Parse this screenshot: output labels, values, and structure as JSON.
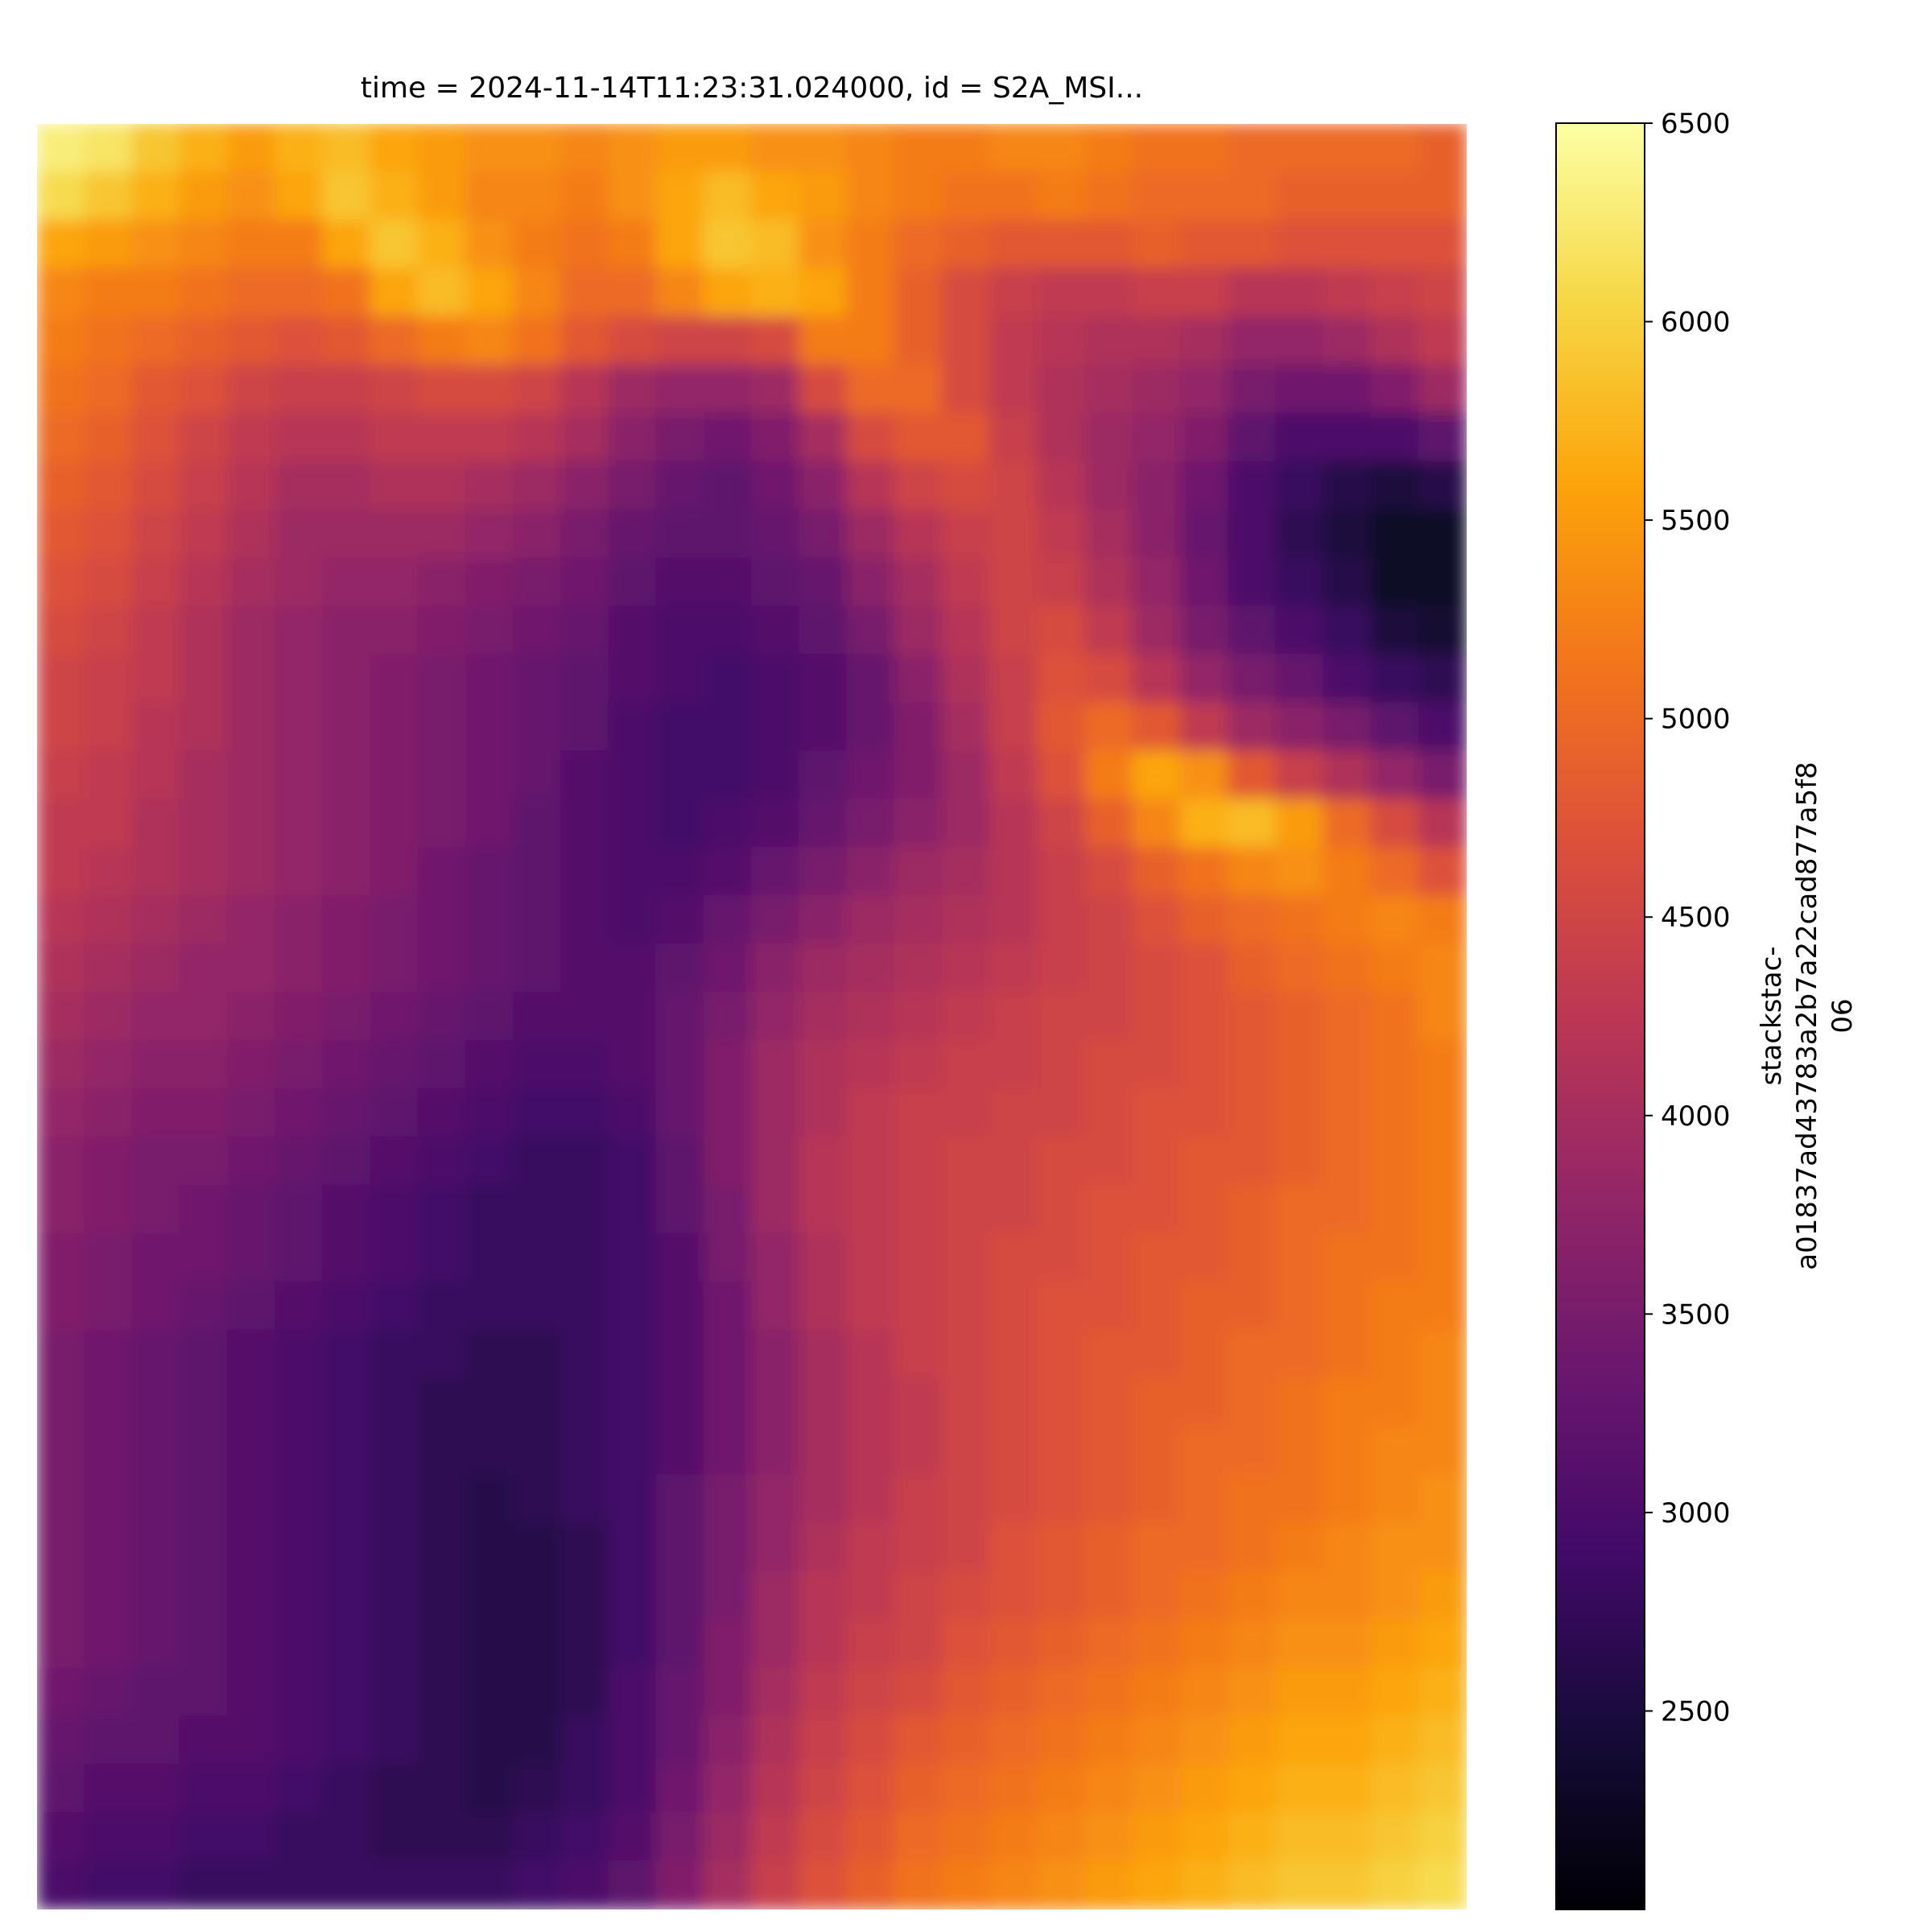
{
  "chart_data": {
    "type": "heatmap",
    "title": "time = 2024-11-14T11:23:31.024000, id = S2A_MSI...",
    "xlabel": "",
    "ylabel": "",
    "axes_visible": false,
    "colormap": "inferno",
    "colorbar": {
      "label_lines": [
        "stackstac-",
        "a01837ad43783a2b7a22cad877a5f8",
        "06"
      ],
      "vmin": 2000,
      "vmax": 6500,
      "ticks": [
        2500,
        3000,
        3500,
        4000,
        4500,
        5000,
        5500,
        6000,
        6500
      ],
      "tick_labels": [
        "2500",
        "3000",
        "3500",
        "4000",
        "4500",
        "5000",
        "5500",
        "6000",
        "6500"
      ],
      "placement": "right"
    },
    "grid_cols": 30,
    "grid_rows": 37,
    "values": [
      [
        6300,
        6200,
        5900,
        5700,
        5500,
        5700,
        5800,
        5600,
        5500,
        5400,
        5400,
        5300,
        5400,
        5500,
        5500,
        5400,
        5400,
        5300,
        5200,
        5200,
        5300,
        5300,
        5200,
        5100,
        5100,
        5000,
        5000,
        5000,
        5000,
        4900
      ],
      [
        6100,
        5900,
        5700,
        5500,
        5400,
        5600,
        5900,
        5700,
        5500,
        5300,
        5300,
        5200,
        5400,
        5600,
        5800,
        5600,
        5500,
        5300,
        5200,
        5100,
        5100,
        5200,
        5100,
        5000,
        5000,
        5000,
        4900,
        4900,
        4900,
        4900
      ],
      [
        5600,
        5500,
        5400,
        5300,
        5200,
        5200,
        5600,
        5900,
        5700,
        5400,
        5200,
        5100,
        5200,
        5600,
        5900,
        5800,
        5400,
        5200,
        5000,
        4900,
        4800,
        4800,
        4800,
        4900,
        4800,
        4800,
        4700,
        4700,
        4700,
        4700
      ],
      [
        5300,
        5200,
        5200,
        5100,
        5000,
        5000,
        5100,
        5600,
        5800,
        5600,
        5300,
        5000,
        5000,
        5300,
        5600,
        5700,
        5600,
        5200,
        4900,
        4600,
        4400,
        4300,
        4300,
        4400,
        4400,
        4200,
        4200,
        4300,
        4400,
        4500
      ],
      [
        5200,
        5100,
        5000,
        4900,
        4800,
        4700,
        4800,
        5000,
        5200,
        5300,
        5100,
        4800,
        4600,
        4500,
        4500,
        4600,
        5200,
        5200,
        4900,
        4600,
        4300,
        4200,
        4100,
        4100,
        4000,
        3800,
        3800,
        3900,
        4100,
        4300
      ],
      [
        5100,
        5000,
        4800,
        4700,
        4500,
        4400,
        4400,
        4500,
        4600,
        4600,
        4500,
        4200,
        3900,
        3800,
        3800,
        3900,
        4600,
        5000,
        5000,
        4600,
        4300,
        4100,
        4000,
        3900,
        3800,
        3500,
        3400,
        3400,
        3600,
        3900
      ],
      [
        5000,
        4900,
        4700,
        4500,
        4300,
        4200,
        4200,
        4300,
        4300,
        4300,
        4200,
        4000,
        3700,
        3500,
        3400,
        3600,
        4000,
        4600,
        4800,
        4800,
        4400,
        4100,
        3900,
        3800,
        3600,
        3200,
        3000,
        3000,
        3000,
        3200
      ],
      [
        4900,
        4800,
        4600,
        4400,
        4200,
        4000,
        4000,
        4100,
        4100,
        4000,
        3900,
        3700,
        3500,
        3300,
        3200,
        3400,
        3700,
        4200,
        4500,
        4600,
        4500,
        4200,
        3900,
        3700,
        3400,
        3000,
        2800,
        2600,
        2500,
        2600
      ],
      [
        4800,
        4700,
        4500,
        4300,
        4100,
        3900,
        3900,
        3900,
        3900,
        3800,
        3700,
        3500,
        3300,
        3200,
        3200,
        3300,
        3500,
        3900,
        4200,
        4400,
        4500,
        4300,
        4000,
        3700,
        3300,
        3000,
        2700,
        2500,
        2300,
        2300
      ],
      [
        4700,
        4600,
        4400,
        4200,
        4000,
        3900,
        3800,
        3800,
        3700,
        3600,
        3500,
        3400,
        3200,
        3100,
        3100,
        3200,
        3300,
        3700,
        4000,
        4300,
        4500,
        4400,
        4100,
        3800,
        3400,
        3000,
        2800,
        2600,
        2300,
        2300
      ],
      [
        4600,
        4500,
        4300,
        4100,
        3900,
        3800,
        3700,
        3700,
        3600,
        3500,
        3400,
        3300,
        3100,
        3000,
        3000,
        3100,
        3200,
        3500,
        3900,
        4200,
        4500,
        4600,
        4300,
        3900,
        3500,
        3200,
        3000,
        2800,
        2500,
        2400
      ],
      [
        4500,
        4400,
        4300,
        4100,
        3900,
        3800,
        3700,
        3600,
        3500,
        3400,
        3300,
        3200,
        3100,
        3000,
        2900,
        3000,
        3100,
        3300,
        3700,
        4100,
        4400,
        4700,
        4600,
        4200,
        3800,
        3500,
        3300,
        3000,
        2800,
        2700
      ],
      [
        4500,
        4400,
        4200,
        4100,
        3900,
        3800,
        3700,
        3600,
        3500,
        3400,
        3300,
        3200,
        3000,
        2900,
        2900,
        3000,
        3100,
        3300,
        3600,
        4000,
        4400,
        4800,
        5000,
        4800,
        4300,
        3900,
        3700,
        3500,
        3200,
        3000
      ],
      [
        4400,
        4300,
        4200,
        4000,
        3900,
        3800,
        3700,
        3600,
        3500,
        3400,
        3300,
        3100,
        3000,
        2900,
        2900,
        3000,
        3200,
        3400,
        3600,
        3900,
        4300,
        4700,
        5200,
        5600,
        5400,
        4800,
        4400,
        4100,
        3800,
        3500
      ],
      [
        4300,
        4300,
        4100,
        4000,
        3900,
        3800,
        3700,
        3600,
        3500,
        3400,
        3200,
        3100,
        3000,
        2900,
        3000,
        3100,
        3300,
        3500,
        3700,
        3900,
        4200,
        4500,
        4900,
        5300,
        5700,
        5800,
        5500,
        5000,
        4600,
        4200
      ],
      [
        4300,
        4200,
        4100,
        4000,
        3900,
        3800,
        3700,
        3600,
        3400,
        3300,
        3200,
        3100,
        3000,
        3000,
        3100,
        3300,
        3500,
        3700,
        3900,
        4000,
        4200,
        4400,
        4600,
        4900,
        5100,
        5300,
        5400,
        5200,
        5000,
        4700
      ],
      [
        4200,
        4100,
        4000,
        3900,
        3800,
        3700,
        3600,
        3500,
        3400,
        3300,
        3200,
        3100,
        3000,
        3100,
        3300,
        3500,
        3700,
        3900,
        4000,
        4100,
        4200,
        4400,
        4500,
        4700,
        4900,
        5000,
        5100,
        5200,
        5300,
        5200
      ],
      [
        4100,
        4000,
        3900,
        3800,
        3800,
        3700,
        3600,
        3500,
        3400,
        3300,
        3200,
        3100,
        3100,
        3200,
        3400,
        3700,
        3900,
        4000,
        4100,
        4200,
        4300,
        4400,
        4500,
        4600,
        4700,
        4900,
        5000,
        5100,
        5200,
        5300
      ],
      [
        4000,
        3900,
        3800,
        3800,
        3700,
        3600,
        3500,
        3400,
        3300,
        3200,
        3100,
        3100,
        3100,
        3300,
        3500,
        3800,
        4000,
        4100,
        4200,
        4300,
        4400,
        4500,
        4500,
        4600,
        4700,
        4800,
        4900,
        5000,
        5100,
        5300
      ],
      [
        3900,
        3800,
        3700,
        3700,
        3600,
        3500,
        3400,
        3300,
        3200,
        3100,
        3000,
        3000,
        3100,
        3300,
        3600,
        3900,
        4100,
        4200,
        4300,
        4400,
        4400,
        4500,
        4600,
        4600,
        4700,
        4800,
        4900,
        5000,
        5100,
        5200
      ],
      [
        3800,
        3700,
        3600,
        3600,
        3500,
        3400,
        3300,
        3200,
        3100,
        3000,
        2900,
        2900,
        3000,
        3300,
        3600,
        3900,
        4100,
        4300,
        4400,
        4400,
        4500,
        4500,
        4600,
        4700,
        4700,
        4800,
        4900,
        5000,
        5100,
        5200
      ],
      [
        3700,
        3600,
        3500,
        3500,
        3400,
        3300,
        3200,
        3100,
        3000,
        2900,
        2800,
        2800,
        2900,
        3200,
        3600,
        3900,
        4200,
        4300,
        4400,
        4500,
        4500,
        4600,
        4600,
        4700,
        4800,
        4800,
        4900,
        5000,
        5100,
        5200
      ],
      [
        3700,
        3600,
        3500,
        3400,
        3300,
        3200,
        3100,
        3000,
        2900,
        2800,
        2800,
        2800,
        2900,
        3200,
        3500,
        3900,
        4200,
        4300,
        4400,
        4500,
        4500,
        4600,
        4700,
        4700,
        4800,
        4900,
        5000,
        5000,
        5100,
        5200
      ],
      [
        3600,
        3500,
        3400,
        3400,
        3300,
        3200,
        3100,
        3000,
        2900,
        2800,
        2800,
        2800,
        2900,
        3100,
        3500,
        3800,
        4100,
        4300,
        4400,
        4500,
        4600,
        4600,
        4700,
        4800,
        4800,
        4900,
        5000,
        5100,
        5100,
        5200
      ],
      [
        3600,
        3500,
        3400,
        3300,
        3200,
        3100,
        3000,
        2900,
        2800,
        2800,
        2800,
        2800,
        2900,
        3100,
        3400,
        3800,
        4100,
        4300,
        4400,
        4500,
        4600,
        4700,
        4700,
        4800,
        4900,
        4900,
        5000,
        5100,
        5200,
        5200
      ],
      [
        3500,
        3400,
        3300,
        3200,
        3100,
        3000,
        2900,
        2800,
        2800,
        2700,
        2700,
        2800,
        2900,
        3100,
        3400,
        3700,
        4000,
        4200,
        4400,
        4500,
        4600,
        4700,
        4800,
        4800,
        4900,
        5000,
        5000,
        5100,
        5200,
        5300
      ],
      [
        3500,
        3400,
        3300,
        3200,
        3100,
        3000,
        2900,
        2800,
        2700,
        2700,
        2700,
        2800,
        2900,
        3100,
        3400,
        3700,
        4000,
        4200,
        4300,
        4500,
        4600,
        4700,
        4800,
        4900,
        4900,
        5000,
        5100,
        5200,
        5200,
        5300
      ],
      [
        3500,
        3400,
        3300,
        3200,
        3100,
        3000,
        2900,
        2800,
        2700,
        2700,
        2700,
        2800,
        2900,
        3100,
        3400,
        3700,
        4000,
        4200,
        4300,
        4500,
        4600,
        4700,
        4800,
        4900,
        5000,
        5000,
        5100,
        5200,
        5300,
        5300
      ],
      [
        3500,
        3400,
        3300,
        3200,
        3100,
        3000,
        2900,
        2800,
        2700,
        2600,
        2700,
        2800,
        2900,
        3200,
        3500,
        3800,
        4000,
        4200,
        4400,
        4500,
        4600,
        4700,
        4800,
        4900,
        5000,
        5100,
        5100,
        5200,
        5300,
        5400
      ],
      [
        3500,
        3400,
        3300,
        3200,
        3100,
        3000,
        2900,
        2800,
        2700,
        2600,
        2600,
        2700,
        2900,
        3200,
        3500,
        3800,
        4100,
        4300,
        4400,
        4500,
        4700,
        4800,
        4900,
        5000,
        5000,
        5100,
        5200,
        5300,
        5400,
        5400
      ],
      [
        3500,
        3400,
        3300,
        3200,
        3100,
        3000,
        2900,
        2800,
        2700,
        2600,
        2600,
        2700,
        2900,
        3200,
        3500,
        3900,
        4200,
        4300,
        4500,
        4600,
        4700,
        4800,
        4900,
        5000,
        5100,
        5200,
        5300,
        5300,
        5400,
        5500
      ],
      [
        3500,
        3400,
        3300,
        3200,
        3100,
        3000,
        2900,
        2800,
        2700,
        2600,
        2600,
        2700,
        2900,
        3200,
        3600,
        3900,
        4200,
        4400,
        4500,
        4700,
        4800,
        4900,
        5000,
        5100,
        5200,
        5300,
        5400,
        5400,
        5500,
        5600
      ],
      [
        3400,
        3300,
        3200,
        3200,
        3100,
        3000,
        2900,
        2800,
        2700,
        2600,
        2600,
        2700,
        3000,
        3300,
        3600,
        4000,
        4300,
        4500,
        4600,
        4800,
        4900,
        5000,
        5100,
        5200,
        5300,
        5400,
        5500,
        5500,
        5600,
        5700
      ],
      [
        3300,
        3200,
        3200,
        3100,
        3100,
        3000,
        2900,
        2800,
        2700,
        2600,
        2600,
        2800,
        3000,
        3300,
        3700,
        4100,
        4400,
        4600,
        4800,
        4900,
        5000,
        5100,
        5200,
        5300,
        5400,
        5500,
        5600,
        5600,
        5700,
        5800
      ],
      [
        3200,
        3100,
        3100,
        3000,
        3000,
        2900,
        2800,
        2700,
        2700,
        2600,
        2700,
        2800,
        3000,
        3400,
        3800,
        4200,
        4500,
        4700,
        4900,
        5000,
        5100,
        5200,
        5300,
        5400,
        5500,
        5600,
        5700,
        5700,
        5800,
        5900
      ],
      [
        3100,
        3000,
        3000,
        2900,
        2900,
        2800,
        2800,
        2700,
        2700,
        2700,
        2800,
        2900,
        3100,
        3500,
        3900,
        4300,
        4600,
        4800,
        5000,
        5100,
        5200,
        5300,
        5400,
        5500,
        5600,
        5700,
        5800,
        5800,
        5900,
        6000
      ],
      [
        3000,
        2900,
        2900,
        2800,
        2800,
        2800,
        2800,
        2800,
        2800,
        2800,
        2900,
        3000,
        3200,
        3600,
        4000,
        4400,
        4700,
        4900,
        5100,
        5200,
        5300,
        5400,
        5500,
        5600,
        5700,
        5800,
        5900,
        5900,
        6000,
        6100
      ]
    ],
    "annotations": []
  }
}
